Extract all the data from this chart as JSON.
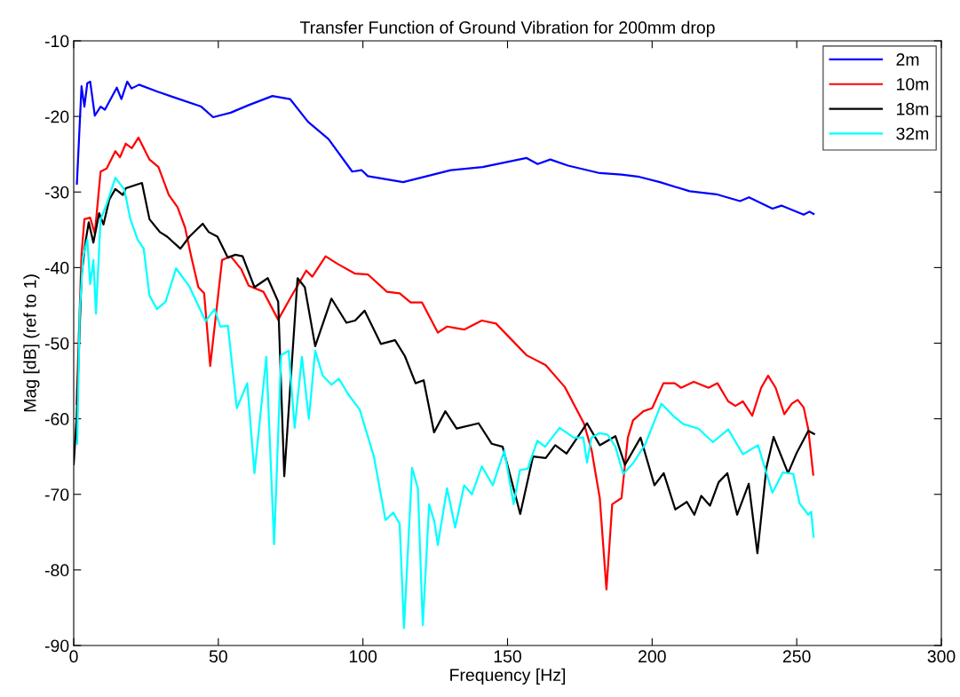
{
  "chart_data": {
    "type": "line",
    "title": "Transfer Function of Ground Vibration for 200mm drop",
    "xlabel": "Frequency [Hz]",
    "ylabel": "Mag [dB] (ref to 1)",
    "xlim": [
      0,
      300
    ],
    "ylim": [
      -90,
      -10
    ],
    "xticks": [
      0,
      50,
      100,
      150,
      200,
      250,
      300
    ],
    "yticks": [
      -90,
      -80,
      -70,
      -60,
      -50,
      -40,
      -30,
      -20,
      -10
    ],
    "grid": false,
    "legend": "top right",
    "marker": "none",
    "line_style": "solid",
    "series": [
      {
        "name": "2m",
        "color": "#0000ff",
        "x": [
          1.1,
          2.7,
          3.7,
          4.7,
          5.7,
          7.3,
          9.3,
          10.8,
          14.9,
          16.5,
          18.5,
          20,
          22.6,
          28.8,
          34.9,
          44.1,
          48.2,
          54.3,
          60.5,
          68.7,
          74.8,
          81,
          88.1,
          96.3,
          99.5,
          101.7,
          113.9,
          130.4,
          141.4,
          156.6,
          160.4,
          164.8,
          170.9,
          181.9,
          189.4,
          195.6,
          202.7,
          213,
          222.2,
          230.4,
          233.5,
          241.6,
          244.7,
          252.4,
          254.4,
          255.8
        ],
        "values": [
          -28.9,
          -16,
          -18.7,
          -15.6,
          -15.4,
          -19.9,
          -18.7,
          -19.1,
          -16.2,
          -17.7,
          -15.4,
          -16.3,
          -15.8,
          -16.7,
          -17.5,
          -18.7,
          -20.1,
          -19.5,
          -18.5,
          -17.3,
          -17.7,
          -20.7,
          -23,
          -27.3,
          -27.1,
          -27.9,
          -28.7,
          -27.1,
          -26.7,
          -25.5,
          -26.3,
          -25.7,
          -26.5,
          -27.5,
          -27.7,
          -28,
          -28.7,
          -29.9,
          -30.3,
          -31.2,
          -30.7,
          -32.2,
          -31.8,
          -33,
          -32.6,
          -32.9
        ]
      },
      {
        "name": "10m",
        "color": "#ff0000",
        "x": [
          1,
          2.7,
          3.7,
          5.7,
          7.3,
          9.3,
          11.4,
          14.4,
          16,
          18,
          20.1,
          22.4,
          26.2,
          29.3,
          32.9,
          35.9,
          38.5,
          40.5,
          43.1,
          45.1,
          47.2,
          51.3,
          54.3,
          57.9,
          60.5,
          65.6,
          70.7,
          74.8,
          80.4,
          82.5,
          87.1,
          91.2,
          97.3,
          101.7,
          108.3,
          112.7,
          116.5,
          120.4,
          125.9,
          129.1,
          135,
          141.1,
          146,
          156.6,
          163.2,
          169.8,
          176.4,
          179.1,
          181.9,
          184.2,
          186.2,
          189.4,
          191.6,
          193.4,
          197,
          200,
          203.9,
          207.8,
          210,
          214.4,
          219.5,
          222.6,
          226.3,
          228.8,
          231.4,
          234.6,
          237.7,
          240.1,
          242.7,
          245.7,
          248.3,
          250.3,
          252.4,
          254,
          255.7
        ],
        "values": [
          -58,
          -38.3,
          -33.6,
          -33.4,
          -35.5,
          -27.3,
          -26.9,
          -24.6,
          -25.4,
          -23.6,
          -24.2,
          -22.8,
          -25.7,
          -26.7,
          -30.4,
          -32,
          -34.7,
          -38.3,
          -42.6,
          -43.4,
          -53,
          -39,
          -38.5,
          -40.2,
          -42.4,
          -43.2,
          -46.9,
          -44.1,
          -40.4,
          -41.2,
          -38.5,
          -39.5,
          -40.8,
          -40.9,
          -43.2,
          -43.4,
          -44.6,
          -44.6,
          -48.6,
          -47.8,
          -48.2,
          -47,
          -47.4,
          -51.6,
          -52.9,
          -55.8,
          -60.6,
          -64.2,
          -70.5,
          -82.6,
          -71.3,
          -70.5,
          -62.5,
          -60.2,
          -59,
          -58.6,
          -55.3,
          -55.3,
          -55.9,
          -55.1,
          -55.9,
          -55.3,
          -57.7,
          -58.3,
          -57.7,
          -59.6,
          -55.9,
          -54.3,
          -55.9,
          -59.4,
          -58,
          -57.5,
          -58.5,
          -61.4,
          -67.4
        ]
      },
      {
        "name": "18m",
        "color": "#000000",
        "x": [
          0,
          1,
          2.7,
          4.2,
          5.2,
          6.8,
          8.8,
          10.3,
          12.3,
          14.4,
          17,
          18,
          23.6,
          26.2,
          29.8,
          32.3,
          36.9,
          40,
          44.6,
          46.7,
          49.7,
          53.3,
          55.9,
          58.4,
          62.5,
          67.1,
          70.7,
          72.8,
          77.4,
          79.9,
          83.5,
          89.1,
          94.3,
          97.3,
          100.6,
          106.2,
          111.1,
          114.5,
          118.2,
          121,
          124.6,
          128.5,
          132.4,
          140,
          144.5,
          148.3,
          154.4,
          158.8,
          163.2,
          166.5,
          170.4,
          177.5,
          181.9,
          187.3,
          190.6,
          196,
          200.8,
          204,
          208,
          212,
          214.6,
          217,
          220,
          223,
          226,
          229.4,
          233.4,
          236.4,
          239.5,
          242,
          247,
          250,
          254,
          256
        ],
        "values": [
          -66,
          -60,
          -41,
          -36.3,
          -34,
          -36.7,
          -32.8,
          -34.3,
          -31,
          -29.6,
          -30.4,
          -29.5,
          -28.8,
          -33.6,
          -35.3,
          -35.9,
          -37.5,
          -35.9,
          -34.2,
          -35.3,
          -35.9,
          -38.7,
          -38.3,
          -38.5,
          -42.6,
          -41.4,
          -44.5,
          -67.6,
          -41.4,
          -42.6,
          -50.4,
          -44.1,
          -47.3,
          -47,
          -45.7,
          -50.1,
          -49.6,
          -51.7,
          -55.3,
          -54.9,
          -61.8,
          -59,
          -61.3,
          -60.6,
          -63.3,
          -63.7,
          -72.6,
          -65,
          -65.2,
          -63.5,
          -64.6,
          -60.6,
          -63.5,
          -62.3,
          -66.1,
          -62.5,
          -68.8,
          -67.2,
          -72,
          -71,
          -72.7,
          -70.2,
          -71.5,
          -68.4,
          -67.2,
          -72.7,
          -68.6,
          -77.8,
          -66.5,
          -62.4,
          -67.2,
          -64.5,
          -61.6,
          -62
        ]
      },
      {
        "name": "32m",
        "color": "#00ffff",
        "x": [
          1.2,
          2.1,
          3.2,
          4.7,
          5.7,
          6.8,
          7.7,
          9.3,
          11.4,
          14.4,
          17.5,
          19.6,
          22.1,
          24.2,
          26.2,
          28.8,
          31.8,
          35.4,
          40,
          45.6,
          48.7,
          50.7,
          53.3,
          56.4,
          60,
          62.5,
          66.6,
          69.3,
          71.7,
          74.3,
          76.4,
          78.9,
          81.3,
          83.5,
          86.1,
          89.1,
          91.7,
          94.8,
          98.9,
          103.8,
          107.8,
          110.5,
          112.7,
          114.2,
          117,
          119,
          120.7,
          122.9,
          124.7,
          125.9,
          129.1,
          131.9,
          135,
          137.7,
          141.1,
          144.9,
          148.9,
          152.1,
          154.3,
          157,
          160.3,
          163,
          168,
          172.9,
          176.2,
          177.5,
          179,
          181.8,
          184.6,
          187.3,
          190,
          193.6,
          197.7,
          203.2,
          207.8,
          210.8,
          216,
          221,
          226.3,
          231.4,
          236.6,
          239.6,
          241.6,
          245.2,
          248.8,
          251,
          254,
          255,
          255.8
        ],
        "values": [
          -63.3,
          -45.7,
          -38.7,
          -36.3,
          -42.2,
          -39,
          -46.1,
          -33.6,
          -31.6,
          -28.1,
          -29.7,
          -33.6,
          -36.3,
          -37.5,
          -43.7,
          -45.5,
          -44.5,
          -40.1,
          -42.5,
          -47.1,
          -45.5,
          -47.8,
          -47.7,
          -58.6,
          -55.3,
          -67.2,
          -51.8,
          -76.6,
          -51.6,
          -51,
          -61.2,
          -51.8,
          -60,
          -51,
          -54.3,
          -55.5,
          -54.7,
          -56.7,
          -58.8,
          -65,
          -73.4,
          -72.4,
          -73.9,
          -87.7,
          -66.5,
          -69.2,
          -87.3,
          -71.3,
          -73.6,
          -76.7,
          -69.2,
          -74.4,
          -68.8,
          -70,
          -66.3,
          -68.8,
          -64.2,
          -71.3,
          -66.8,
          -66.6,
          -62.9,
          -63.7,
          -61.2,
          -62.5,
          -62.5,
          -65.8,
          -62.5,
          -61.9,
          -62.1,
          -63.7,
          -67.3,
          -65.8,
          -63.3,
          -58,
          -59.8,
          -60.7,
          -61.3,
          -63.1,
          -61.4,
          -64.7,
          -63.5,
          -67.3,
          -69.8,
          -67.1,
          -67.3,
          -71.2,
          -72.7,
          -72.3,
          -75.6
        ]
      }
    ]
  }
}
